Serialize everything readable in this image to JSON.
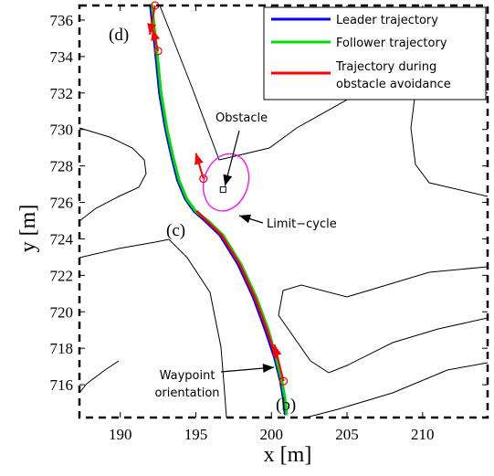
{
  "chart_data": {
    "type": "line",
    "xlabel": "x [m]",
    "ylabel": "y [m]",
    "xlim": [
      187.3,
      214.3
    ],
    "ylim": [
      714.2,
      736.8
    ],
    "x_ticks": [
      190,
      195,
      200,
      205,
      210
    ],
    "y_ticks": [
      716,
      718,
      720,
      722,
      724,
      726,
      728,
      730,
      732,
      734,
      736
    ],
    "series": [
      {
        "name": "Leader trajectory",
        "color": "#0000ff",
        "x": [
          192.0,
          192.3,
          192.6,
          193.0,
          193.4,
          193.8,
          194.3,
          194.9,
          195.6,
          196.6,
          197.8,
          198.8,
          199.6,
          200.2,
          200.6,
          200.8,
          200.9
        ],
        "y": [
          736.8,
          734.5,
          732.0,
          730.0,
          728.5,
          727.2,
          726.2,
          725.5,
          725.0,
          724.2,
          722.6,
          720.8,
          719.0,
          717.5,
          716.2,
          715.2,
          714.4
        ]
      },
      {
        "name": "Follower trajectory",
        "color": "#00dd00",
        "x": [
          192.1,
          192.4,
          192.7,
          193.1,
          193.5,
          193.9,
          194.4,
          195.0,
          195.8,
          196.8,
          198.0,
          199.0,
          199.8,
          200.3,
          200.7,
          200.9,
          201.0
        ],
        "y": [
          736.8,
          734.5,
          732.0,
          730.0,
          728.5,
          727.2,
          726.2,
          725.5,
          725.0,
          724.2,
          722.6,
          720.8,
          719.0,
          717.5,
          716.2,
          715.2,
          714.4
        ]
      },
      {
        "name": "Trajectory during obstacle avoidance",
        "color": "#ff0000",
        "x": [
          195.1,
          195.7,
          196.7,
          197.9,
          198.9,
          199.7,
          200.3
        ],
        "y": [
          725.5,
          725.0,
          724.2,
          722.6,
          720.8,
          719.0,
          717.5
        ]
      }
    ],
    "legend": [
      "Leader trajectory",
      "Follower trajectory",
      "Trajectory during obstacle avoidance"
    ],
    "legend_text": {
      "leader": "Leader trajectory",
      "follower": "Follower trajectory",
      "avoid_line1": "Trajectory during",
      "avoid_line2": "obstacle avoidance"
    },
    "legend_location": "top-right",
    "obstacle": {
      "x": 196.8,
      "y": 726.7
    },
    "limit_cycle": {
      "cx": 197.0,
      "cy": 727.1,
      "rx": 1.45,
      "ry": 1.6,
      "color": "#ff00ff"
    },
    "waypoints": [
      {
        "x": 192.3,
        "y": 736.8,
        "dx": -0.35,
        "dy": -1.6
      },
      {
        "x": 192.5,
        "y": 734.3,
        "dx": -0.35,
        "dy": 1.2
      },
      {
        "x": 195.5,
        "y": 727.3,
        "dx": -0.5,
        "dy": 1.4
      },
      {
        "x": 200.8,
        "y": 716.2,
        "dx": -0.6,
        "dy": 2.0
      }
    ],
    "annotations": {
      "obstacle": "Obstacle",
      "limit_cycle": "Limit−cycle",
      "waypoint_line1": "Waypoint",
      "waypoint_line2": "orientation"
    },
    "panel_labels": {
      "b": "(b)",
      "c": "(c)",
      "d": "(d)"
    },
    "contour_color": "#000000",
    "grid": false
  }
}
